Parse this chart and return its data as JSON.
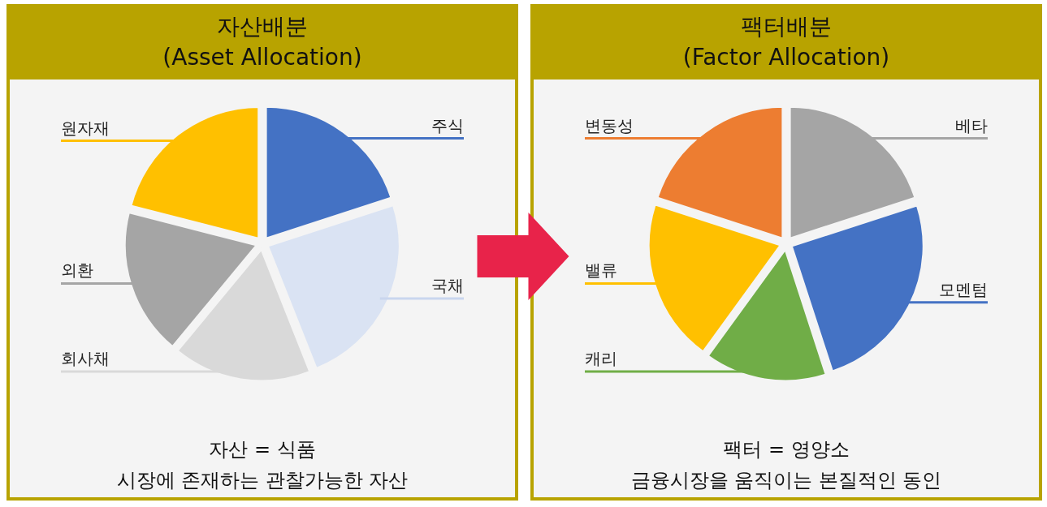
{
  "chart_data": [
    {
      "type": "pie",
      "title": "자산배분",
      "subtitle": "(Asset Allocation)",
      "categories": [
        "주식",
        "국채",
        "회사채",
        "외환",
        "원자재"
      ],
      "values": [
        20,
        24,
        17,
        18,
        21
      ],
      "colors": [
        "#4472c4",
        "#dae3f3",
        "#d9d9d9",
        "#a5a5a5",
        "#ffc000"
      ],
      "annotations": [
        "자산 = 식품",
        "시장에 존재하는 관찰가능한 자산"
      ]
    },
    {
      "type": "pie",
      "title": "팩터배분",
      "subtitle": "(Factor Allocation)",
      "categories": [
        "베타",
        "모멘텀",
        "캐리",
        "밸류",
        "변동성"
      ],
      "values": [
        20,
        25,
        15,
        20,
        20
      ],
      "colors": [
        "#a5a5a5",
        "#4472c4",
        "#70ad47",
        "#ffc000",
        "#ed7d31"
      ],
      "annotations": [
        "팩터 = 영양소",
        "금융시장을 움직이는 본질적인 동인"
      ]
    }
  ]
}
